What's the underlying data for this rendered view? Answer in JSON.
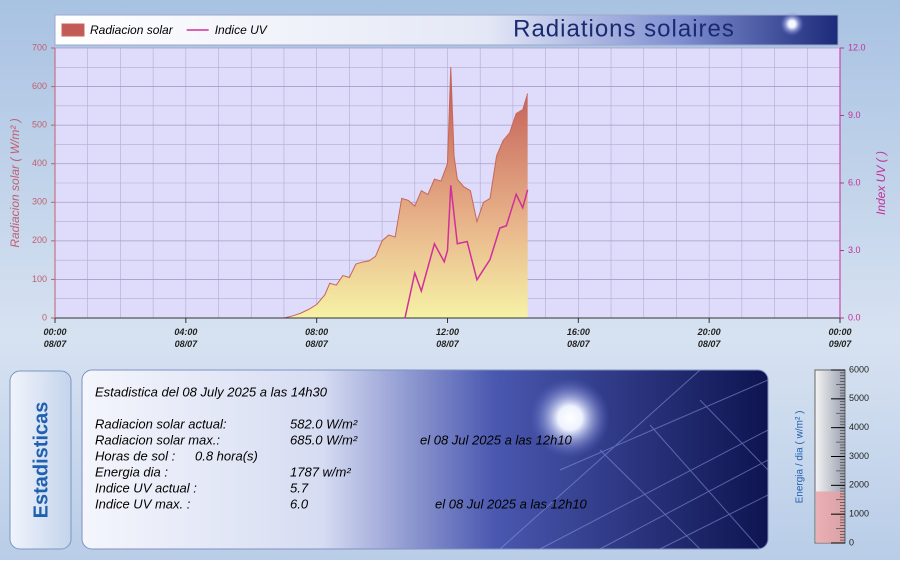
{
  "chart_data": {
    "type": "area",
    "title": "Radiations solaires",
    "ylabel": "Radiacion solar ( W/m² )",
    "y2label": "Index UV ( )",
    "xlim": [
      0,
      24
    ],
    "xticks": [
      {
        "value": 0,
        "label": "00:00 08/07"
      },
      {
        "value": 4,
        "label": "04:00 08/07"
      },
      {
        "value": 8,
        "label": "08:00 08/07"
      },
      {
        "value": 12,
        "label": "12:00 08/07"
      },
      {
        "value": 16,
        "label": "16:00 08/07"
      },
      {
        "value": 20,
        "label": "20:00 08/07"
      },
      {
        "value": 24,
        "label": "00:00 09/07"
      }
    ],
    "ylim": [
      0,
      700
    ],
    "yticks": [
      0,
      100,
      200,
      300,
      400,
      500,
      600,
      700
    ],
    "y2lim": [
      0,
      12
    ],
    "y2ticks": [
      {
        "value": 0,
        "label": "0.0"
      },
      {
        "value": 3,
        "label": "3.0"
      },
      {
        "value": 6,
        "label": "6.0"
      },
      {
        "value": 9,
        "label": "9.0"
      },
      {
        "value": 12,
        "label": "12.0"
      }
    ],
    "grid": true,
    "legend": "top-left",
    "series": [
      {
        "name": "Radiacion solar",
        "color": "#c8665a",
        "kind": "area",
        "x": [
          7.0,
          7.25,
          7.5,
          7.75,
          8.0,
          8.25,
          8.4,
          8.6,
          8.8,
          9.0,
          9.2,
          9.4,
          9.6,
          9.8,
          10.0,
          10.2,
          10.4,
          10.6,
          10.8,
          11.0,
          11.2,
          11.4,
          11.6,
          11.8,
          12.0,
          12.1,
          12.2,
          12.3,
          12.5,
          12.7,
          12.9,
          13.1,
          13.3,
          13.5,
          13.7,
          13.9,
          14.1,
          14.3,
          14.45
        ],
        "values": [
          0,
          5,
          12,
          22,
          35,
          60,
          90,
          85,
          110,
          105,
          140,
          145,
          148,
          160,
          200,
          215,
          210,
          310,
          305,
          290,
          330,
          320,
          360,
          355,
          400,
          650,
          420,
          360,
          340,
          330,
          250,
          300,
          310,
          420,
          460,
          480,
          530,
          540,
          582
        ]
      },
      {
        "name": "Indice UV",
        "color": "#d0309a",
        "kind": "line",
        "axis": "y2",
        "x": [
          10.7,
          11.0,
          11.2,
          11.6,
          11.9,
          12.0,
          12.1,
          12.3,
          12.6,
          12.9,
          13.3,
          13.6,
          13.8,
          14.1,
          14.3,
          14.45
        ],
        "values": [
          0,
          2.0,
          1.2,
          3.3,
          2.5,
          3.0,
          5.9,
          3.3,
          3.4,
          1.7,
          2.6,
          4.0,
          4.1,
          5.5,
          4.9,
          5.7
        ]
      }
    ]
  },
  "stats": {
    "tab": "Estadisticas",
    "heading": "Estadistica del 08 July 2025 a las 14h30",
    "rows": [
      {
        "label": "Radiacion solar actual:",
        "value": "582.0 W/m²"
      },
      {
        "label": "Radiacion solar max.:",
        "value": "685.0 W/m²",
        "note": "el 08 Jul 2025 a las 12h10"
      },
      {
        "label": "Horas de sol :",
        "value": "0.8 hora(s)"
      },
      {
        "label": "Energia dia :",
        "value": "1787 w/m²"
      },
      {
        "label": "Indice UV actual :",
        "value": "5.7"
      },
      {
        "label": "Indice UV max. :",
        "value": "6.0",
        "note": "el 08 Jul 2025 a las 12h10"
      }
    ]
  },
  "gauge": {
    "label": "Energia / dia ( w/m² )",
    "value": 1787,
    "lim": [
      0,
      6000
    ],
    "ticks": [
      0,
      1000,
      2000,
      3000,
      4000,
      5000,
      6000
    ]
  }
}
